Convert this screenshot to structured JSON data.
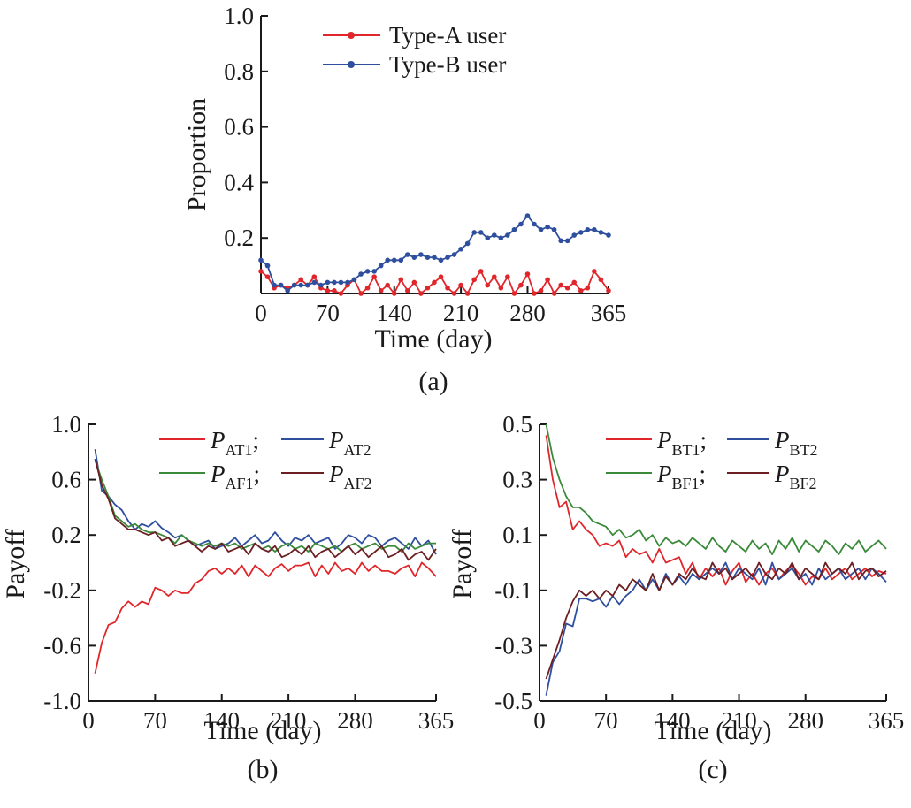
{
  "chart_data": [
    {
      "type": "line",
      "panel_label": "(a)",
      "xlabel": "Time (day)",
      "ylabel": "Proportion",
      "xlim": [
        0,
        365
      ],
      "ylim": [
        0,
        1.0
      ],
      "xticks": [
        0,
        70,
        140,
        210,
        280,
        365
      ],
      "xtick_labels": [
        "0",
        "70",
        "140",
        "210",
        "280",
        "365"
      ],
      "yticks": [
        0.2,
        0.4,
        0.6,
        0.8,
        1.0
      ],
      "ytick_labels": [
        "0.2",
        "0.4",
        "0.6",
        "0.8",
        "1.0"
      ],
      "markers": true,
      "legend_position": "top",
      "x": [
        0,
        7,
        14,
        21,
        28,
        35,
        42,
        49,
        56,
        63,
        70,
        77,
        84,
        91,
        98,
        105,
        112,
        119,
        126,
        133,
        140,
        147,
        154,
        161,
        168,
        175,
        182,
        189,
        196,
        203,
        210,
        217,
        224,
        231,
        238,
        245,
        252,
        259,
        266,
        273,
        280,
        287,
        294,
        301,
        308,
        315,
        322,
        329,
        336,
        343,
        350,
        357,
        365
      ],
      "series": [
        {
          "name": "Type-A user",
          "color": "#e0262b",
          "values": [
            0.08,
            0.06,
            0.02,
            0.03,
            0.02,
            0.03,
            0.05,
            0.03,
            0.06,
            0.02,
            0.01,
            0.01,
            0.0,
            0.03,
            0.05,
            0.0,
            0.02,
            0.06,
            0.01,
            0.03,
            0.0,
            0.05,
            0.01,
            0.04,
            0.0,
            0.02,
            0.04,
            0.06,
            0.02,
            0.0,
            0.03,
            0.0,
            0.05,
            0.08,
            0.03,
            0.06,
            0.02,
            0.06,
            0.0,
            0.03,
            0.07,
            0.0,
            0.01,
            0.05,
            0.0,
            0.03,
            0.02,
            0.04,
            0.01,
            0.02,
            0.08,
            0.05,
            0.01
          ]
        },
        {
          "name": "Type-B user",
          "color": "#2e4e9e",
          "values": [
            0.12,
            0.1,
            0.03,
            0.03,
            0.01,
            0.03,
            0.03,
            0.03,
            0.04,
            0.03,
            0.04,
            0.04,
            0.04,
            0.04,
            0.05,
            0.07,
            0.08,
            0.08,
            0.1,
            0.12,
            0.12,
            0.12,
            0.14,
            0.13,
            0.14,
            0.13,
            0.13,
            0.12,
            0.13,
            0.14,
            0.16,
            0.18,
            0.22,
            0.22,
            0.2,
            0.21,
            0.2,
            0.21,
            0.23,
            0.25,
            0.28,
            0.25,
            0.23,
            0.24,
            0.23,
            0.19,
            0.19,
            0.21,
            0.22,
            0.23,
            0.23,
            0.22,
            0.21
          ]
        }
      ]
    },
    {
      "type": "line",
      "panel_label": "(b)",
      "xlabel": "Time (day)",
      "ylabel": "Payoff",
      "xlim": [
        0,
        365
      ],
      "ylim": [
        -1.0,
        1.0
      ],
      "xticks": [
        0,
        70,
        140,
        210,
        280,
        365
      ],
      "xtick_labels": [
        "0",
        "70",
        "140",
        "210",
        "280",
        "365"
      ],
      "yticks": [
        -1.0,
        -0.6,
        -0.2,
        0.2,
        0.6,
        1.0
      ],
      "ytick_labels": [
        "-1.0",
        "-0.6",
        "-0.2",
        "0.2",
        "0.6",
        "1.0"
      ],
      "legend_position": "top-right",
      "x": [
        7,
        14,
        21,
        28,
        35,
        42,
        49,
        56,
        63,
        70,
        77,
        84,
        91,
        98,
        105,
        112,
        119,
        126,
        133,
        140,
        147,
        154,
        161,
        168,
        175,
        182,
        189,
        196,
        203,
        210,
        217,
        224,
        231,
        238,
        245,
        252,
        259,
        266,
        273,
        280,
        287,
        294,
        301,
        308,
        315,
        322,
        329,
        336,
        343,
        350,
        357,
        365
      ],
      "series": [
        {
          "name_main": "P",
          "name_sub": "AT1",
          "color": "#e0262b",
          "values": [
            -0.8,
            -0.58,
            -0.45,
            -0.43,
            -0.33,
            -0.28,
            -0.32,
            -0.28,
            -0.3,
            -0.18,
            -0.2,
            -0.24,
            -0.2,
            -0.22,
            -0.22,
            -0.15,
            -0.12,
            -0.06,
            -0.04,
            -0.08,
            -0.04,
            -0.08,
            -0.02,
            -0.1,
            -0.02,
            -0.06,
            -0.1,
            -0.04,
            -0.01,
            -0.06,
            -0.02,
            -0.02,
            0.0,
            -0.1,
            -0.02,
            -0.08,
            0.0,
            -0.06,
            -0.04,
            -0.08,
            0.0,
            -0.06,
            -0.02,
            -0.06,
            -0.06,
            -0.08,
            -0.04,
            -0.02,
            -0.1,
            0.0,
            -0.04,
            -0.1
          ]
        },
        {
          "name_main": "P",
          "name_sub": "AT2",
          "color": "#2e4e9e",
          "values": [
            0.82,
            0.52,
            0.48,
            0.42,
            0.38,
            0.3,
            0.24,
            0.28,
            0.26,
            0.3,
            0.25,
            0.22,
            0.18,
            0.2,
            0.16,
            0.12,
            0.14,
            0.16,
            0.1,
            0.12,
            0.14,
            0.18,
            0.12,
            0.16,
            0.2,
            0.14,
            0.16,
            0.22,
            0.16,
            0.12,
            0.18,
            0.16,
            0.2,
            0.14,
            0.16,
            0.18,
            0.1,
            0.14,
            0.2,
            0.18,
            0.14,
            0.2,
            0.18,
            0.12,
            0.16,
            0.18,
            0.14,
            0.1,
            0.18,
            0.12,
            0.16,
            0.06
          ]
        },
        {
          "name_main": "P",
          "name_sub": "AF1",
          "color": "#3a8a3a",
          "values": [
            0.74,
            0.6,
            0.48,
            0.34,
            0.3,
            0.26,
            0.28,
            0.24,
            0.22,
            0.22,
            0.2,
            0.18,
            0.14,
            0.2,
            0.16,
            0.14,
            0.12,
            0.14,
            0.12,
            0.14,
            0.12,
            0.14,
            0.1,
            0.12,
            0.14,
            0.1,
            0.12,
            0.08,
            0.12,
            0.14,
            0.1,
            0.12,
            0.08,
            0.14,
            0.12,
            0.1,
            0.12,
            0.08,
            0.12,
            0.14,
            0.1,
            0.12,
            0.14,
            0.1,
            0.12,
            0.12,
            0.08,
            0.14,
            0.1,
            0.12,
            0.14,
            0.14
          ]
        },
        {
          "name_main": "P",
          "name_sub": "AF2",
          "color": "#6b1f22",
          "values": [
            0.75,
            0.56,
            0.46,
            0.32,
            0.28,
            0.24,
            0.24,
            0.22,
            0.2,
            0.22,
            0.16,
            0.18,
            0.12,
            0.14,
            0.16,
            0.12,
            0.08,
            0.12,
            0.1,
            0.14,
            0.08,
            0.1,
            0.12,
            0.06,
            0.14,
            0.1,
            0.08,
            0.12,
            0.04,
            0.06,
            0.1,
            0.06,
            0.12,
            0.04,
            0.08,
            0.1,
            0.04,
            0.08,
            0.12,
            0.06,
            0.1,
            0.04,
            0.08,
            0.12,
            0.04,
            0.06,
            0.1,
            0.02,
            0.06,
            0.08,
            0.02,
            0.1
          ]
        }
      ]
    },
    {
      "type": "line",
      "panel_label": "(c)",
      "xlabel": "Time (day)",
      "ylabel": "Payoff",
      "xlim": [
        0,
        365
      ],
      "ylim": [
        -0.5,
        0.5
      ],
      "xticks": [
        0,
        70,
        140,
        210,
        280,
        365
      ],
      "xtick_labels": [
        "0",
        "70",
        "140",
        "210",
        "280",
        "365"
      ],
      "yticks": [
        -0.5,
        -0.3,
        -0.1,
        0.1,
        0.3,
        0.5
      ],
      "ytick_labels": [
        "-0.5",
        "-0.3",
        "-0.1",
        "0.1",
        "0.3",
        "0.5"
      ],
      "legend_position": "top-right",
      "x": [
        7,
        14,
        21,
        28,
        35,
        42,
        49,
        56,
        63,
        70,
        77,
        84,
        91,
        98,
        105,
        112,
        119,
        126,
        133,
        140,
        147,
        154,
        161,
        168,
        175,
        182,
        189,
        196,
        203,
        210,
        217,
        224,
        231,
        238,
        245,
        252,
        259,
        266,
        273,
        280,
        287,
        294,
        301,
        308,
        315,
        322,
        329,
        336,
        343,
        350,
        357,
        365
      ],
      "series": [
        {
          "name_main": "P",
          "name_sub": "BT1",
          "color": "#e0262b",
          "values": [
            0.46,
            0.3,
            0.2,
            0.22,
            0.12,
            0.15,
            0.12,
            0.1,
            0.06,
            0.07,
            0.06,
            0.08,
            0.02,
            0.05,
            0.03,
            0.04,
            0.0,
            0.05,
            0.0,
            0.01,
            0.02,
            -0.04,
            0.0,
            -0.06,
            -0.02,
            -0.05,
            -0.02,
            -0.08,
            -0.03,
            0.0,
            -0.07,
            -0.04,
            -0.08,
            -0.04,
            -0.02,
            -0.06,
            -0.03,
            -0.01,
            -0.04,
            -0.08,
            -0.05,
            -0.06,
            -0.02,
            -0.06,
            -0.04,
            -0.02,
            -0.06,
            -0.04,
            -0.02,
            -0.05,
            -0.03,
            -0.04
          ]
        },
        {
          "name_main": "P",
          "name_sub": "BT2",
          "color": "#2e4e9e",
          "values": [
            -0.48,
            -0.36,
            -0.32,
            -0.22,
            -0.23,
            -0.13,
            -0.13,
            -0.14,
            -0.13,
            -0.16,
            -0.12,
            -0.15,
            -0.12,
            -0.1,
            -0.06,
            -0.1,
            -0.06,
            -0.1,
            -0.04,
            -0.08,
            -0.05,
            -0.08,
            -0.04,
            -0.06,
            -0.04,
            -0.02,
            -0.04,
            0.0,
            -0.06,
            -0.02,
            -0.04,
            -0.06,
            -0.02,
            -0.08,
            0.0,
            -0.06,
            -0.04,
            -0.02,
            -0.06,
            -0.04,
            -0.08,
            -0.02,
            -0.06,
            -0.04,
            -0.02,
            -0.06,
            -0.04,
            -0.02,
            -0.06,
            -0.02,
            -0.04,
            -0.07
          ]
        },
        {
          "name_main": "P",
          "name_sub": "BF1",
          "color": "#3a8a3a",
          "values": [
            0.5,
            0.38,
            0.3,
            0.24,
            0.2,
            0.2,
            0.18,
            0.15,
            0.14,
            0.13,
            0.1,
            0.12,
            0.09,
            0.1,
            0.12,
            0.08,
            0.1,
            0.06,
            0.09,
            0.07,
            0.08,
            0.06,
            0.09,
            0.07,
            0.05,
            0.09,
            0.06,
            0.04,
            0.08,
            0.06,
            0.04,
            0.08,
            0.05,
            0.07,
            0.03,
            0.08,
            0.05,
            0.09,
            0.04,
            0.08,
            0.06,
            0.04,
            0.08,
            0.06,
            0.03,
            0.07,
            0.05,
            0.08,
            0.04,
            0.06,
            0.08,
            0.05
          ]
        },
        {
          "name_main": "P",
          "name_sub": "BF2",
          "color": "#6b1f22",
          "values": [
            -0.42,
            -0.35,
            -0.28,
            -0.2,
            -0.14,
            -0.1,
            -0.12,
            -0.1,
            -0.13,
            -0.1,
            -0.12,
            -0.08,
            -0.1,
            -0.06,
            -0.08,
            -0.1,
            -0.04,
            -0.1,
            -0.05,
            -0.08,
            -0.04,
            -0.06,
            -0.02,
            -0.05,
            -0.06,
            0.0,
            -0.04,
            -0.02,
            -0.06,
            -0.04,
            -0.02,
            -0.05,
            0.0,
            -0.04,
            -0.06,
            -0.02,
            -0.04,
            0.0,
            -0.06,
            -0.02,
            -0.04,
            -0.06,
            0.0,
            -0.04,
            -0.02,
            -0.04,
            0.0,
            -0.06,
            -0.03,
            -0.02,
            -0.05,
            -0.03
          ]
        }
      ]
    }
  ]
}
